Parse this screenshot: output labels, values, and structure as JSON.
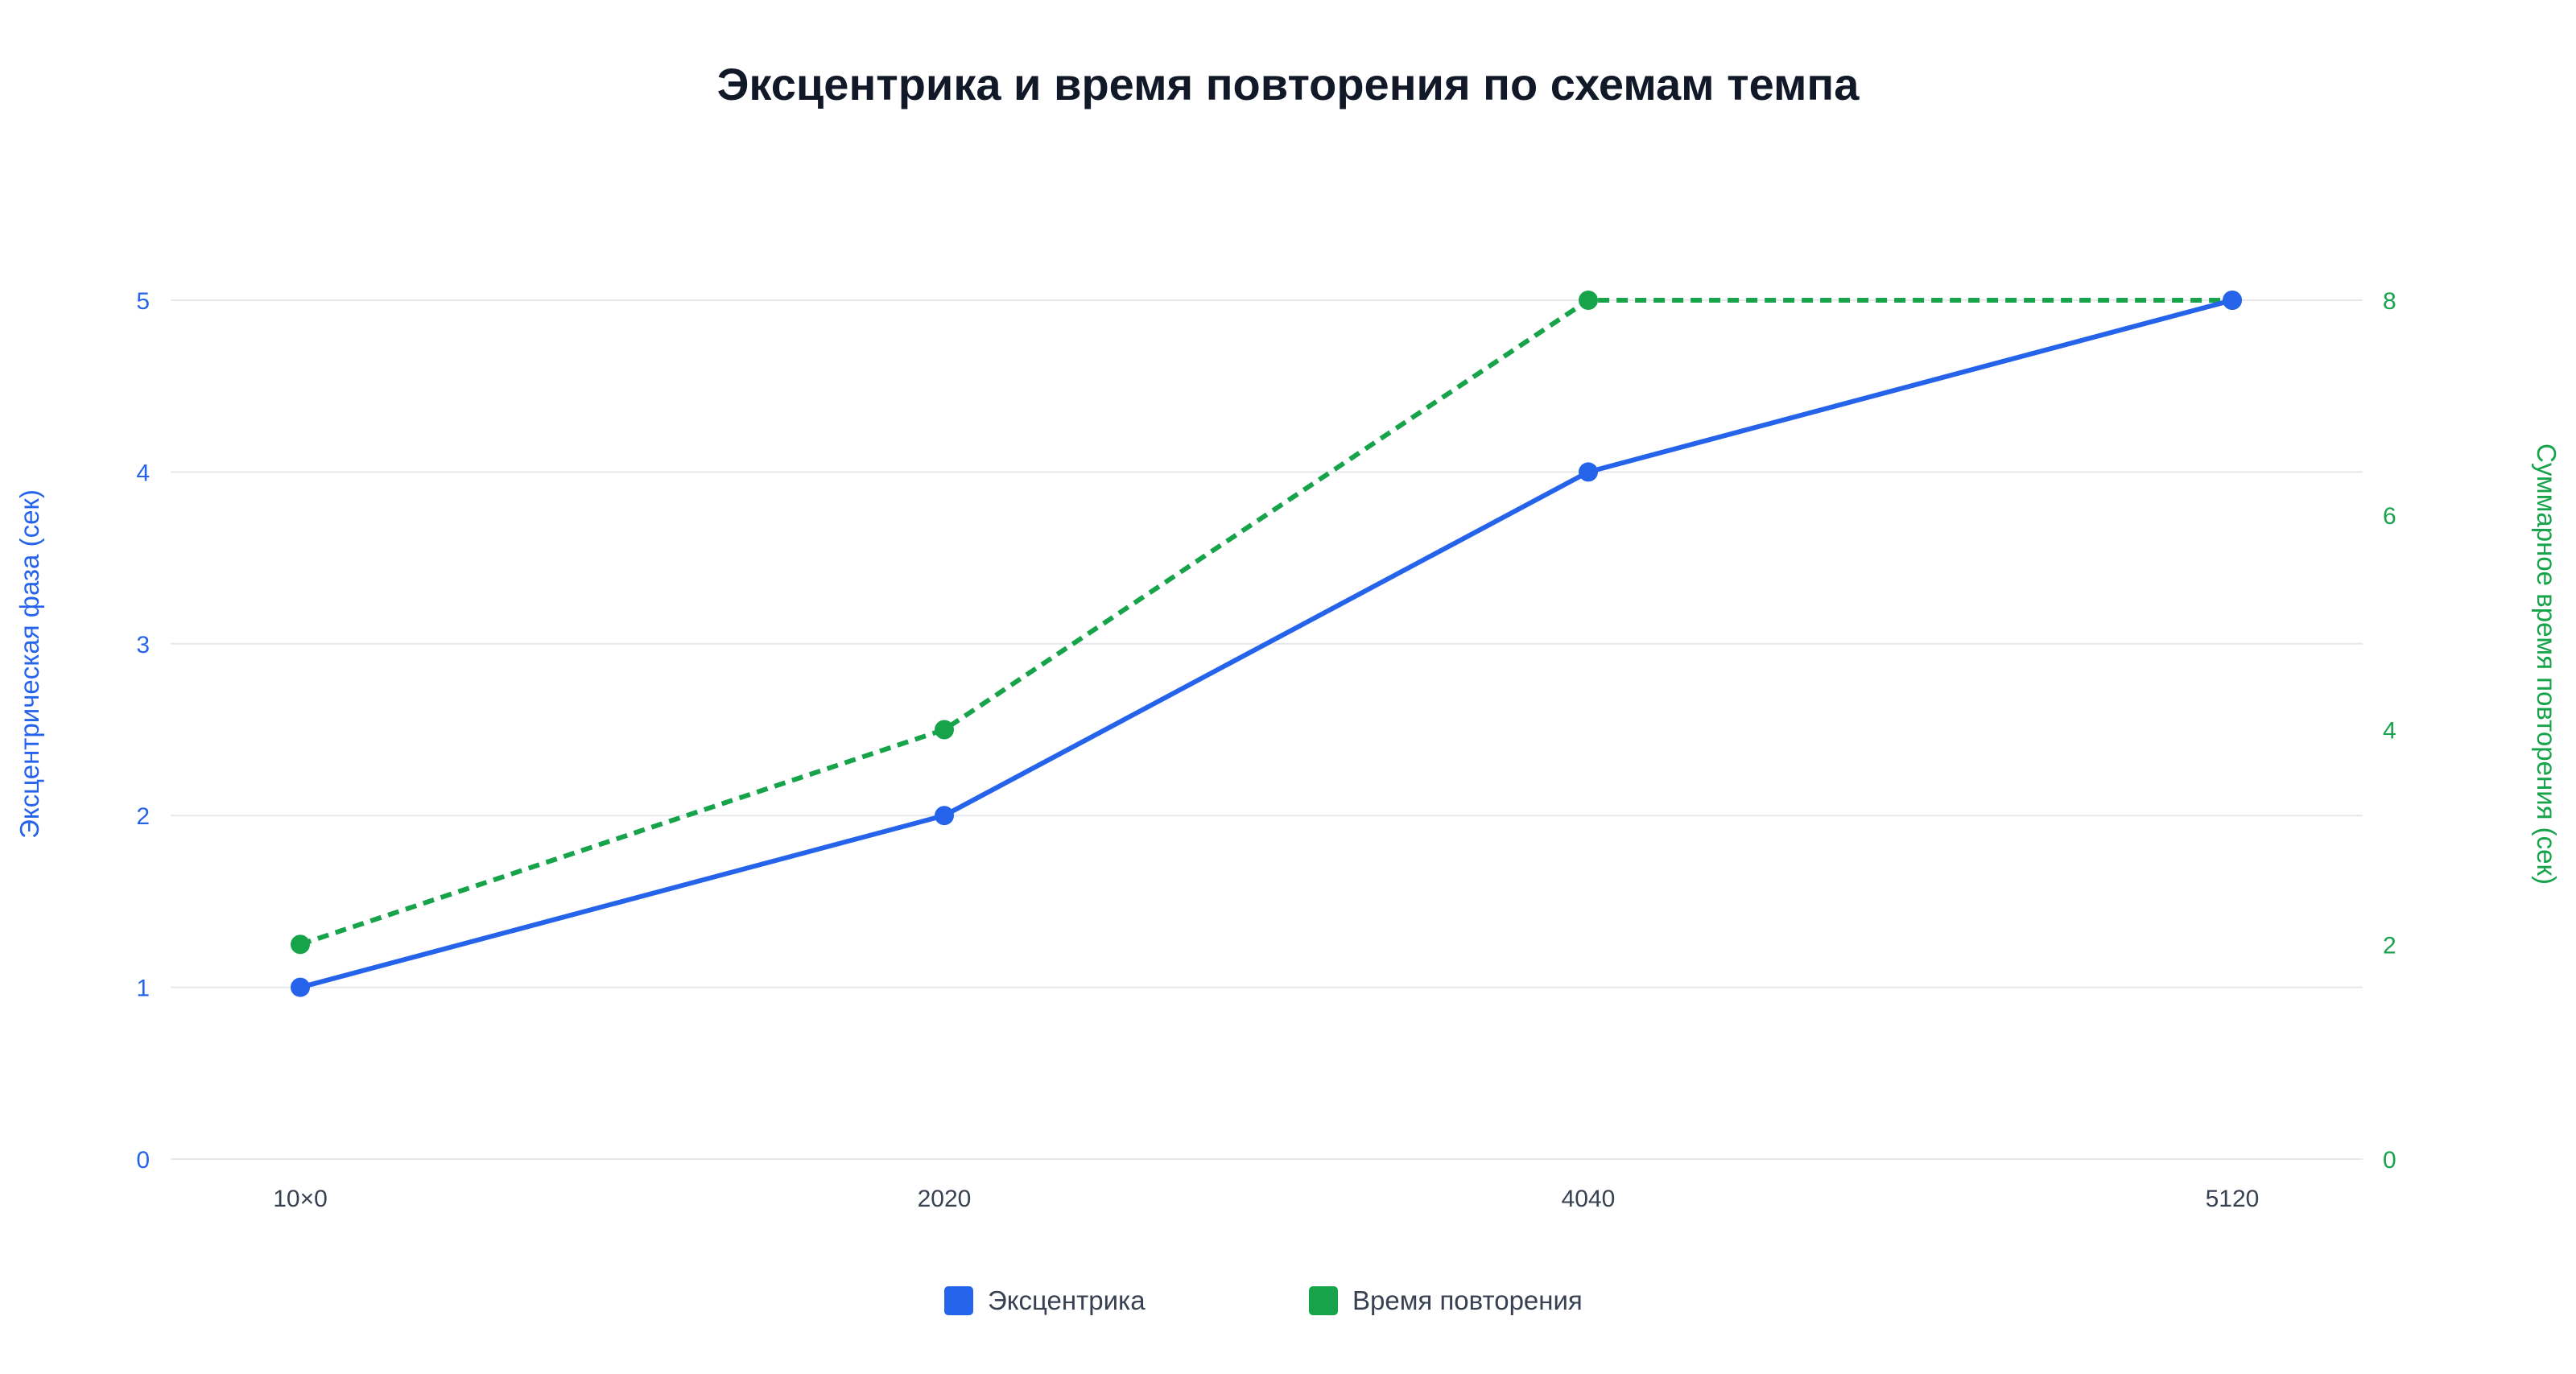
{
  "chart_data": {
    "type": "line",
    "title": "Эксцентрика и время повторения по схемам темпа",
    "categories": [
      "10×0",
      "2020",
      "4040",
      "5120"
    ],
    "y_left": {
      "label": "Эксцентрическая фаза (сек)",
      "range": [
        0,
        5
      ],
      "ticks": [
        0,
        1,
        2,
        3,
        4,
        5
      ],
      "color": "#2563eb"
    },
    "y_right": {
      "label": "Суммарное время повторения (сек)",
      "range": [
        0,
        8
      ],
      "ticks": [
        0,
        2,
        4,
        6,
        8
      ],
      "color": "#16a34a"
    },
    "series": [
      {
        "name": "Эксцентрика",
        "axis": "left",
        "color": "#2563eb",
        "style": "solid",
        "values": [
          1,
          2,
          4,
          5
        ]
      },
      {
        "name": "Время повторения",
        "axis": "right",
        "color": "#16a34a",
        "style": "dashed",
        "values": [
          2,
          4,
          8,
          8
        ]
      }
    ],
    "grid": true,
    "legend_position": "bottom-center"
  }
}
